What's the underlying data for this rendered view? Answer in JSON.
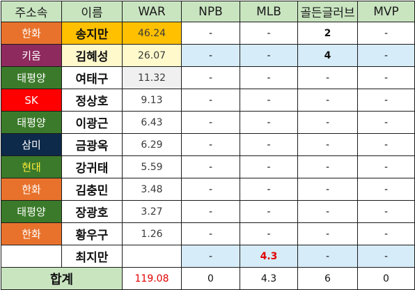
{
  "colors": {
    "header_bg": "#c9e5c0",
    "hanwha": "#e8722c",
    "kiwoom": "#8e2a5e",
    "taepyeongyang": "#3b7a2a",
    "sk": "#ff0000",
    "sammi": "#0d2a4a",
    "hyundai": "#3b7a2a",
    "hyundai_text": "#ffeb3b",
    "highlight_orange": "#ffc000",
    "highlight_yellow": "#fff9cc",
    "highlight_gray": "#f0f0f0",
    "light_blue": "#d6ecf8",
    "accent_red": "#e00000"
  },
  "headers": [
    "주소속",
    "이름",
    "WAR",
    "NPB",
    "MLB",
    "골든글러브",
    "MVP"
  ],
  "rows": [
    {
      "team": "한화",
      "team_color": "#e8722c",
      "team_text_color": "#ffffff",
      "name": "송지만",
      "name_bg": "#ffc000",
      "war": "46.24",
      "war_bg": "#ffc000",
      "npb": "-",
      "mlb": "-",
      "gg": "2",
      "mvp": "-",
      "blue": false,
      "gg_bold": true,
      "mlb_red": false
    },
    {
      "team": "키움",
      "team_color": "#8e2a5e",
      "team_text_color": "#ffffff",
      "name": "김혜성",
      "name_bg": "#fff9cc",
      "war": "26.07",
      "war_bg": "#fff9cc",
      "npb": "-",
      "mlb": "-",
      "gg": "4",
      "mvp": "-",
      "blue": true,
      "gg_bold": true,
      "mlb_red": false
    },
    {
      "team": "태평양",
      "team_color": "#3b7a2a",
      "team_text_color": "#ffffff",
      "name": "여태구",
      "name_bg": "#ffffff",
      "war": "11.32",
      "war_bg": "#f0f0f0",
      "npb": "-",
      "mlb": "-",
      "gg": "-",
      "mvp": "-",
      "blue": false,
      "gg_bold": false,
      "mlb_red": false
    },
    {
      "team": "SK",
      "team_color": "#ff0000",
      "team_text_color": "#ffffff",
      "name": "정상호",
      "name_bg": "#ffffff",
      "war": "9.13",
      "war_bg": "#ffffff",
      "npb": "-",
      "mlb": "-",
      "gg": "-",
      "mvp": "-",
      "blue": false,
      "gg_bold": false,
      "mlb_red": false
    },
    {
      "team": "태평양",
      "team_color": "#3b7a2a",
      "team_text_color": "#ffffff",
      "name": "이광근",
      "name_bg": "#ffffff",
      "war": "6.43",
      "war_bg": "#ffffff",
      "npb": "-",
      "mlb": "-",
      "gg": "-",
      "mvp": "-",
      "blue": false,
      "gg_bold": false,
      "mlb_red": false
    },
    {
      "team": "삼미",
      "team_color": "#0d2a4a",
      "team_text_color": "#ffffff",
      "name": "금광옥",
      "name_bg": "#ffffff",
      "war": "6.29",
      "war_bg": "#ffffff",
      "npb": "-",
      "mlb": "-",
      "gg": "-",
      "mvp": "-",
      "blue": false,
      "gg_bold": false,
      "mlb_red": false
    },
    {
      "team": "현대",
      "team_color": "#3b7a2a",
      "team_text_color": "#ffeb3b",
      "name": "강귀태",
      "name_bg": "#ffffff",
      "war": "5.59",
      "war_bg": "#ffffff",
      "npb": "-",
      "mlb": "-",
      "gg": "-",
      "mvp": "-",
      "blue": false,
      "gg_bold": false,
      "mlb_red": false
    },
    {
      "team": "한화",
      "team_color": "#e8722c",
      "team_text_color": "#ffffff",
      "name": "김충민",
      "name_bg": "#ffffff",
      "war": "3.48",
      "war_bg": "#ffffff",
      "npb": "-",
      "mlb": "-",
      "gg": "-",
      "mvp": "-",
      "blue": false,
      "gg_bold": false,
      "mlb_red": false
    },
    {
      "team": "태평양",
      "team_color": "#3b7a2a",
      "team_text_color": "#ffffff",
      "name": "장광호",
      "name_bg": "#ffffff",
      "war": "3.27",
      "war_bg": "#ffffff",
      "npb": "-",
      "mlb": "-",
      "gg": "-",
      "mvp": "-",
      "blue": false,
      "gg_bold": false,
      "mlb_red": false
    },
    {
      "team": "한화",
      "team_color": "#e8722c",
      "team_text_color": "#ffffff",
      "name": "황우구",
      "name_bg": "#ffffff",
      "war": "1.26",
      "war_bg": "#ffffff",
      "npb": "-",
      "mlb": "-",
      "gg": "-",
      "mvp": "-",
      "blue": false,
      "gg_bold": false,
      "mlb_red": false
    },
    {
      "team": "",
      "team_color": "#ffffff",
      "team_text_color": "#ffffff",
      "name": "최지만",
      "name_bg": "#ffffff",
      "war": "",
      "war_bg": "#ffffff",
      "npb": "-",
      "mlb": "4.3",
      "gg": "-",
      "mvp": "-",
      "blue": true,
      "gg_bold": false,
      "mlb_red": true
    }
  ],
  "total": {
    "label": "합계",
    "war": "119.08",
    "npb": "0",
    "mlb": "4.3",
    "gg": "6",
    "mvp": "0"
  }
}
